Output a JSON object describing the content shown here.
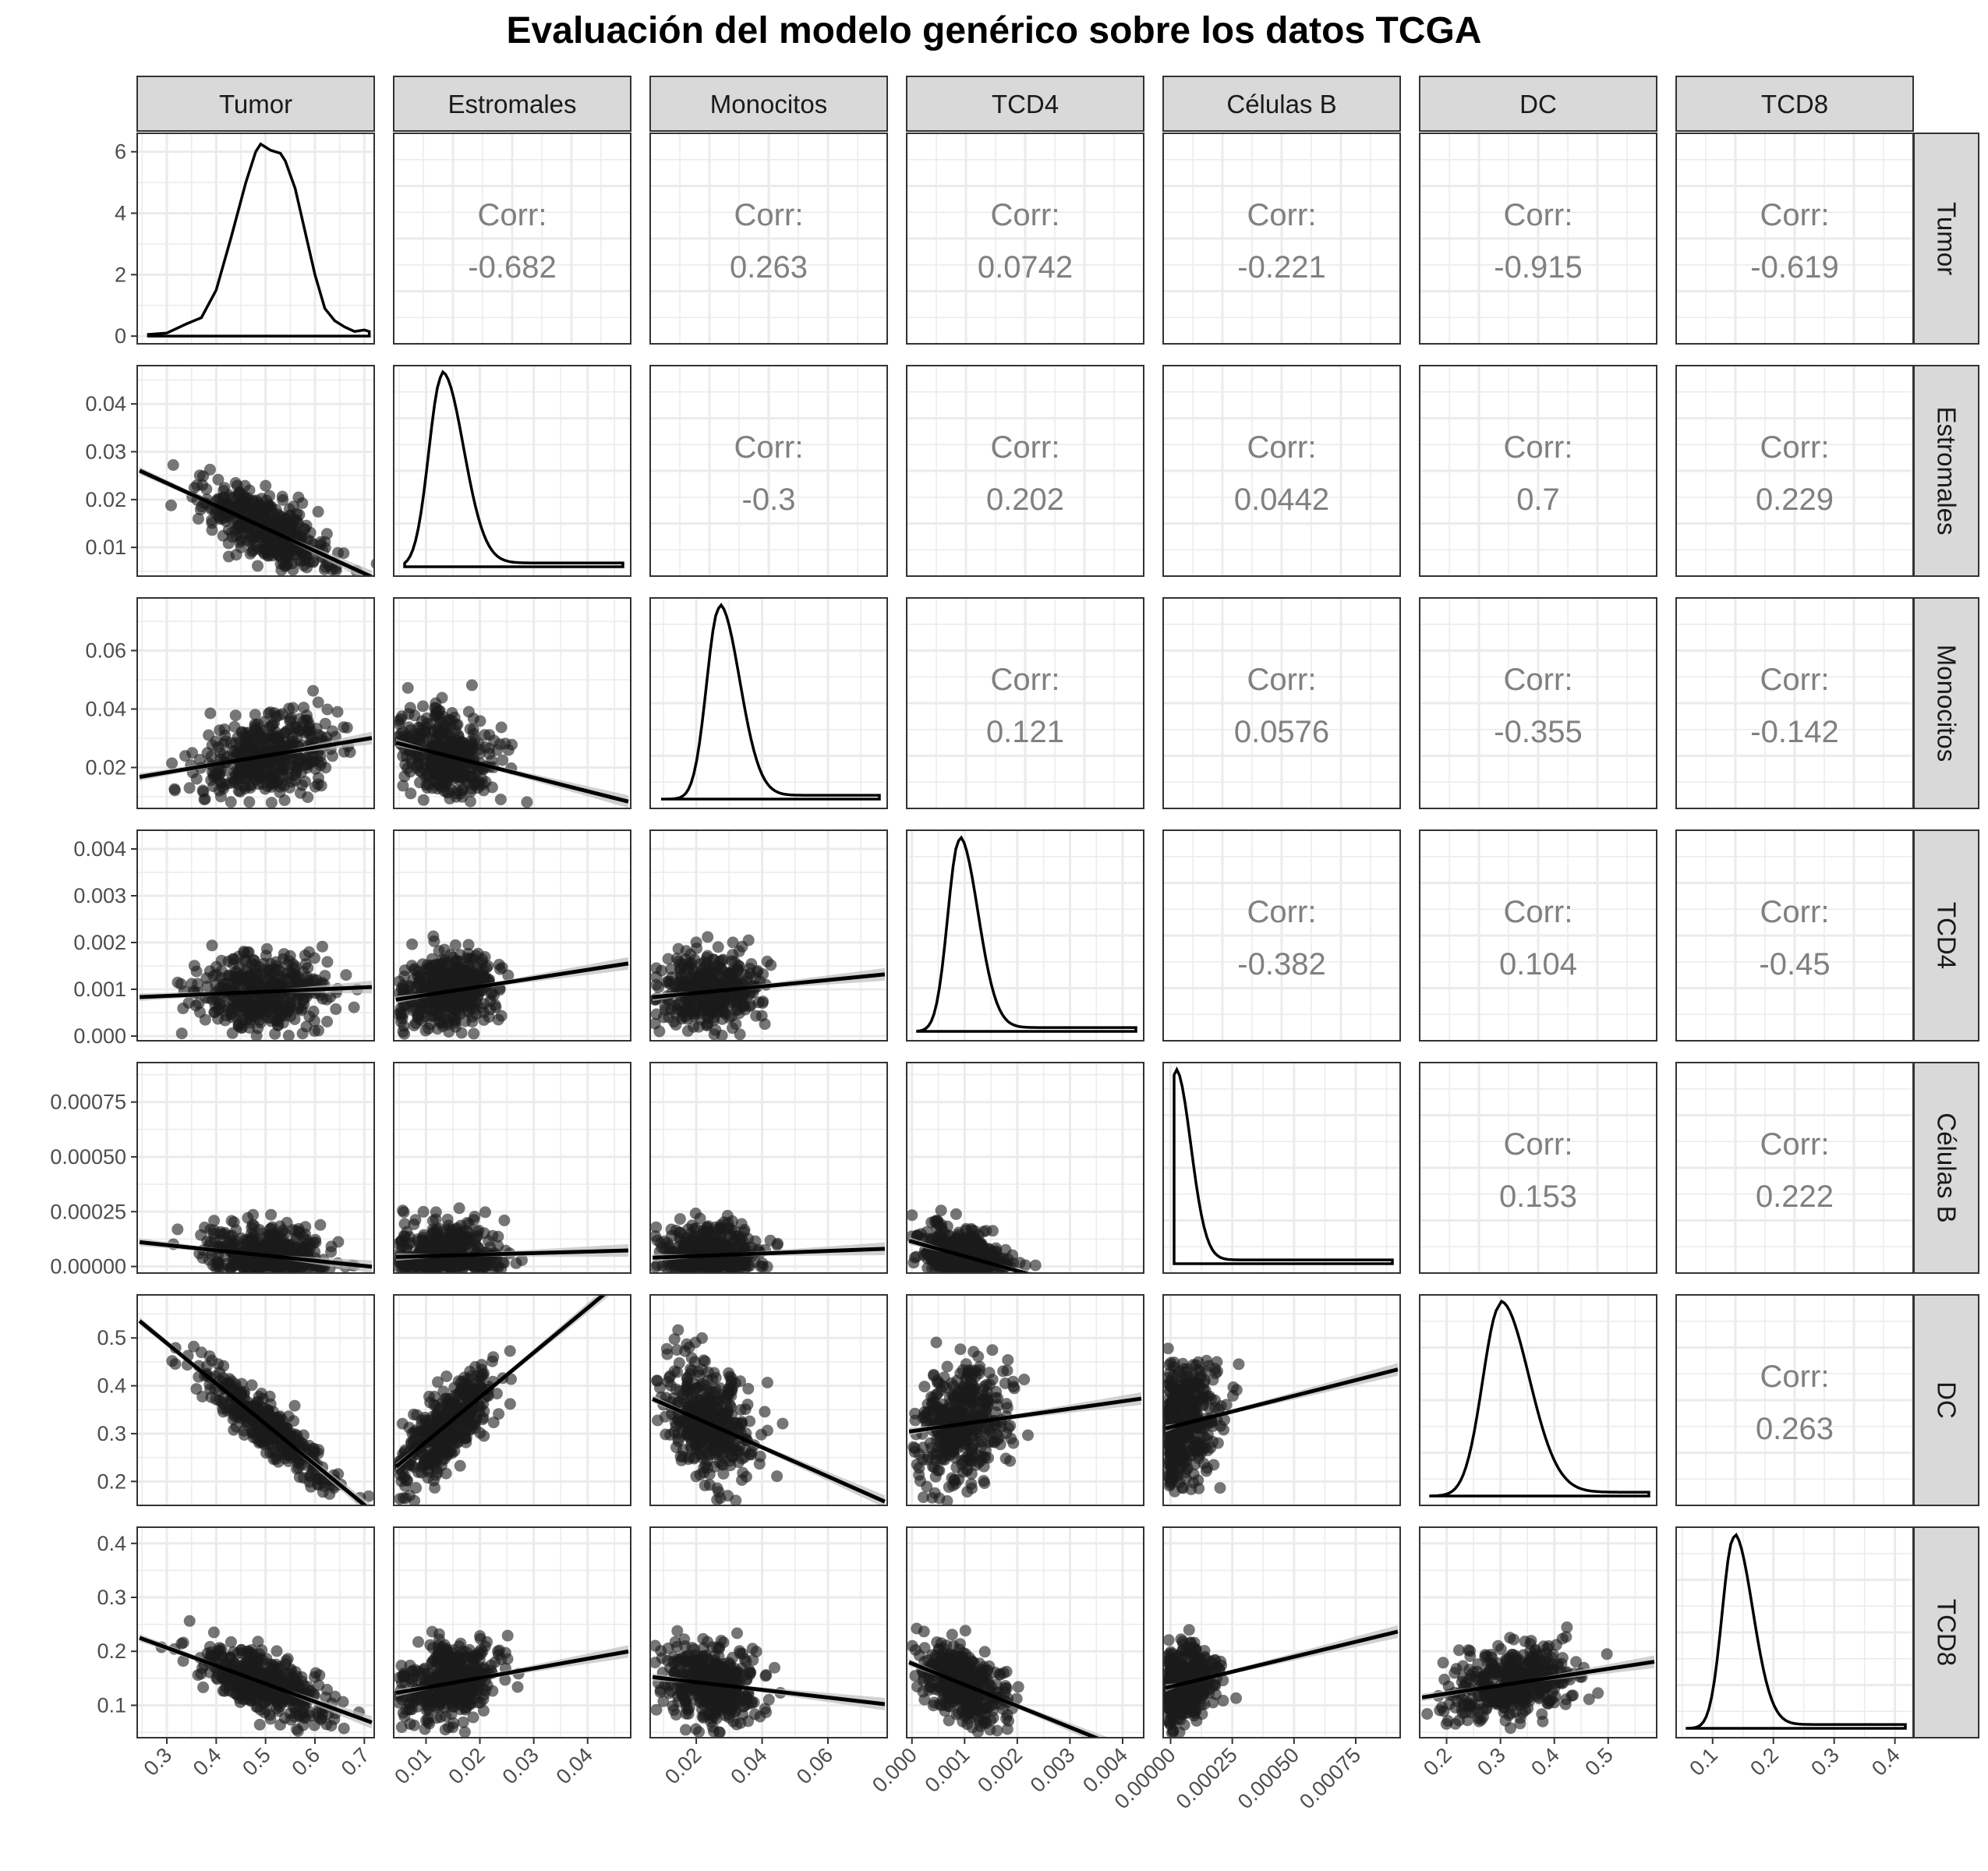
{
  "chart_data": {
    "type": "scatter-matrix",
    "title": "Evaluación del modelo genérico sobre los datos TCGA",
    "variables": [
      "Tumor",
      "Estromales",
      "Monocitos",
      "TCD4",
      "Células B",
      "DC",
      "TCD8"
    ],
    "axes": [
      {
        "range": [
          0.24,
          0.72
        ],
        "ticks": [
          0.3,
          0.4,
          0.5,
          0.6,
          0.7
        ],
        "tick_labels": [
          "0.3",
          "0.4",
          "0.5",
          "0.6",
          "0.7"
        ]
      },
      {
        "range": [
          0.004,
          0.048
        ],
        "ticks": [
          0.01,
          0.02,
          0.03,
          0.04
        ],
        "tick_labels": [
          "0.01",
          "0.02",
          "0.03",
          "0.04"
        ]
      },
      {
        "range": [
          0.006,
          0.078
        ],
        "ticks": [
          0.02,
          0.04,
          0.06
        ],
        "tick_labels": [
          "0.02",
          "0.04",
          "0.06"
        ]
      },
      {
        "range": [
          -0.0001,
          0.0044
        ],
        "ticks": [
          0.0,
          0.001,
          0.002,
          0.003,
          0.004
        ],
        "tick_labels": [
          "0.000",
          "0.001",
          "0.002",
          "0.003",
          "0.004"
        ]
      },
      {
        "range": [
          -3e-05,
          0.00093
        ],
        "ticks": [
          0.0,
          0.00025,
          0.0005,
          0.00075
        ],
        "tick_labels": [
          "0.00000",
          "0.00025",
          "0.00050",
          "0.00075"
        ]
      },
      {
        "range": [
          0.15,
          0.59
        ],
        "ticks": [
          0.2,
          0.3,
          0.4,
          0.5
        ],
        "tick_labels": [
          "0.2",
          "0.3",
          "0.4",
          "0.5"
        ]
      },
      {
        "range": [
          0.04,
          0.43
        ],
        "ticks": [
          0.1,
          0.2,
          0.3,
          0.4
        ],
        "tick_labels": [
          "0.1",
          "0.2",
          "0.3",
          "0.4"
        ]
      }
    ],
    "means": [
      0.5,
      0.014,
      0.024,
      0.00095,
      5e-05,
      0.32,
      0.14
    ],
    "sds": [
      0.065,
      0.0045,
      0.007,
      0.0004,
      7e-05,
      0.06,
      0.035
    ],
    "tumor_density": {
      "x": [
        0.26,
        0.3,
        0.34,
        0.37,
        0.4,
        0.43,
        0.46,
        0.48,
        0.49,
        0.5,
        0.51,
        0.52,
        0.53,
        0.54,
        0.56,
        0.58,
        0.6,
        0.62,
        0.64,
        0.66,
        0.68,
        0.7,
        0.71
      ],
      "y": [
        0.05,
        0.1,
        0.4,
        0.6,
        1.5,
        3.2,
        5.0,
        6.0,
        6.25,
        6.15,
        6.05,
        6.0,
        5.95,
        5.7,
        4.8,
        3.4,
        2.0,
        0.9,
        0.5,
        0.3,
        0.15,
        0.2,
        0.15
      ]
    },
    "diagonal_density_peaks": [
      0.49,
      0.013,
      0.027,
      0.0009,
      2e-05,
      0.3,
      0.135
    ],
    "correlations": [
      {
        "row": "Tumor",
        "col": "Estromales",
        "label": "Corr:",
        "value": "-0.682"
      },
      {
        "row": "Tumor",
        "col": "Monocitos",
        "label": "Corr:",
        "value": "0.263"
      },
      {
        "row": "Tumor",
        "col": "TCD4",
        "label": "Corr:",
        "value": "0.0742"
      },
      {
        "row": "Tumor",
        "col": "Células B",
        "label": "Corr:",
        "value": "-0.221"
      },
      {
        "row": "Tumor",
        "col": "DC",
        "label": "Corr:",
        "value": "-0.915"
      },
      {
        "row": "Tumor",
        "col": "TCD8",
        "label": "Corr:",
        "value": "-0.619"
      },
      {
        "row": "Estromales",
        "col": "Monocitos",
        "label": "Corr:",
        "value": "-0.3"
      },
      {
        "row": "Estromales",
        "col": "TCD4",
        "label": "Corr:",
        "value": "0.202"
      },
      {
        "row": "Estromales",
        "col": "Células B",
        "label": "Corr:",
        "value": "0.0442"
      },
      {
        "row": "Estromales",
        "col": "DC",
        "label": "Corr:",
        "value": "0.7"
      },
      {
        "row": "Estromales",
        "col": "TCD8",
        "label": "Corr:",
        "value": "0.229"
      },
      {
        "row": "Monocitos",
        "col": "TCD4",
        "label": "Corr:",
        "value": "0.121"
      },
      {
        "row": "Monocitos",
        "col": "Células B",
        "label": "Corr:",
        "value": "0.0576"
      },
      {
        "row": "Monocitos",
        "col": "DC",
        "label": "Corr:",
        "value": "-0.355"
      },
      {
        "row": "Monocitos",
        "col": "TCD8",
        "label": "Corr:",
        "value": "-0.142"
      },
      {
        "row": "TCD4",
        "col": "Células B",
        "label": "Corr:",
        "value": "-0.382"
      },
      {
        "row": "TCD4",
        "col": "DC",
        "label": "Corr:",
        "value": "0.104"
      },
      {
        "row": "TCD4",
        "col": "TCD8",
        "label": "Corr:",
        "value": "-0.45"
      },
      {
        "row": "Células B",
        "col": "DC",
        "label": "Corr:",
        "value": "0.153"
      },
      {
        "row": "Células B",
        "col": "TCD8",
        "label": "Corr:",
        "value": "0.222"
      },
      {
        "row": "DC",
        "col": "TCD8",
        "label": "Corr:",
        "value": "0.263"
      }
    ],
    "grid": true,
    "regression_lines": true,
    "colors": {
      "points": "#1a1a1a",
      "line": "#000000",
      "band": "#bdbdbd",
      "strip_bg": "#d9d9d9",
      "grid": "#ebebeb",
      "corr_text": "#808080"
    }
  }
}
